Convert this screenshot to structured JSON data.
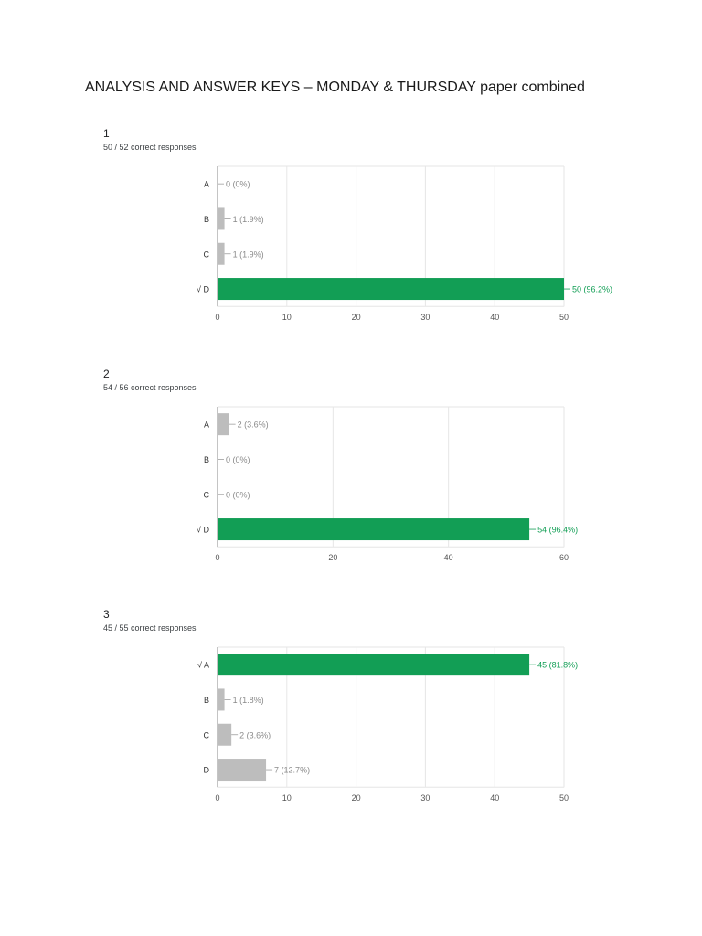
{
  "page": {
    "title": "ANALYSIS AND ANSWER KEYS – MONDAY & THURSDAY paper combined"
  },
  "colors": {
    "correct": "#129e55",
    "incorrect": "#bdbdbd",
    "grid": "#e6e6e6",
    "axis": "#9e9e9e",
    "label": "#555555"
  },
  "questions": [
    {
      "number": "1",
      "score": "50 / 52 correct responses"
    },
    {
      "number": "2",
      "score": "54 / 56 correct responses"
    },
    {
      "number": "3",
      "score": "45 / 55 correct responses"
    }
  ],
  "chart_data": [
    {
      "type": "bar",
      "orientation": "horizontal",
      "categories": [
        "A",
        "B",
        "C",
        "√ D"
      ],
      "values": [
        0,
        1,
        1,
        50
      ],
      "labels": [
        "0 (0%)",
        "1 (1.9%)",
        "1 (1.9%)",
        "50 (96.2%)"
      ],
      "correct": [
        false,
        false,
        false,
        true
      ],
      "xlim": [
        0,
        50
      ],
      "ticks": [
        0,
        10,
        20,
        30,
        40,
        50
      ],
      "grid": true
    },
    {
      "type": "bar",
      "orientation": "horizontal",
      "categories": [
        "A",
        "B",
        "C",
        "√ D"
      ],
      "values": [
        2,
        0,
        0,
        54
      ],
      "labels": [
        "2 (3.6%)",
        "0 (0%)",
        "0 (0%)",
        "54 (96.4%)"
      ],
      "correct": [
        false,
        false,
        false,
        true
      ],
      "xlim": [
        0,
        60
      ],
      "ticks": [
        0,
        20,
        40,
        60
      ],
      "grid": true
    },
    {
      "type": "bar",
      "orientation": "horizontal",
      "categories": [
        "√ A",
        "B",
        "C",
        "D"
      ],
      "values": [
        45,
        1,
        2,
        7
      ],
      "labels": [
        "45 (81.8%)",
        "1 (1.8%)",
        "2 (3.6%)",
        "7 (12.7%)"
      ],
      "correct": [
        true,
        false,
        false,
        false
      ],
      "xlim": [
        0,
        50
      ],
      "ticks": [
        0,
        10,
        20,
        30,
        40,
        50
      ],
      "grid": true
    }
  ]
}
